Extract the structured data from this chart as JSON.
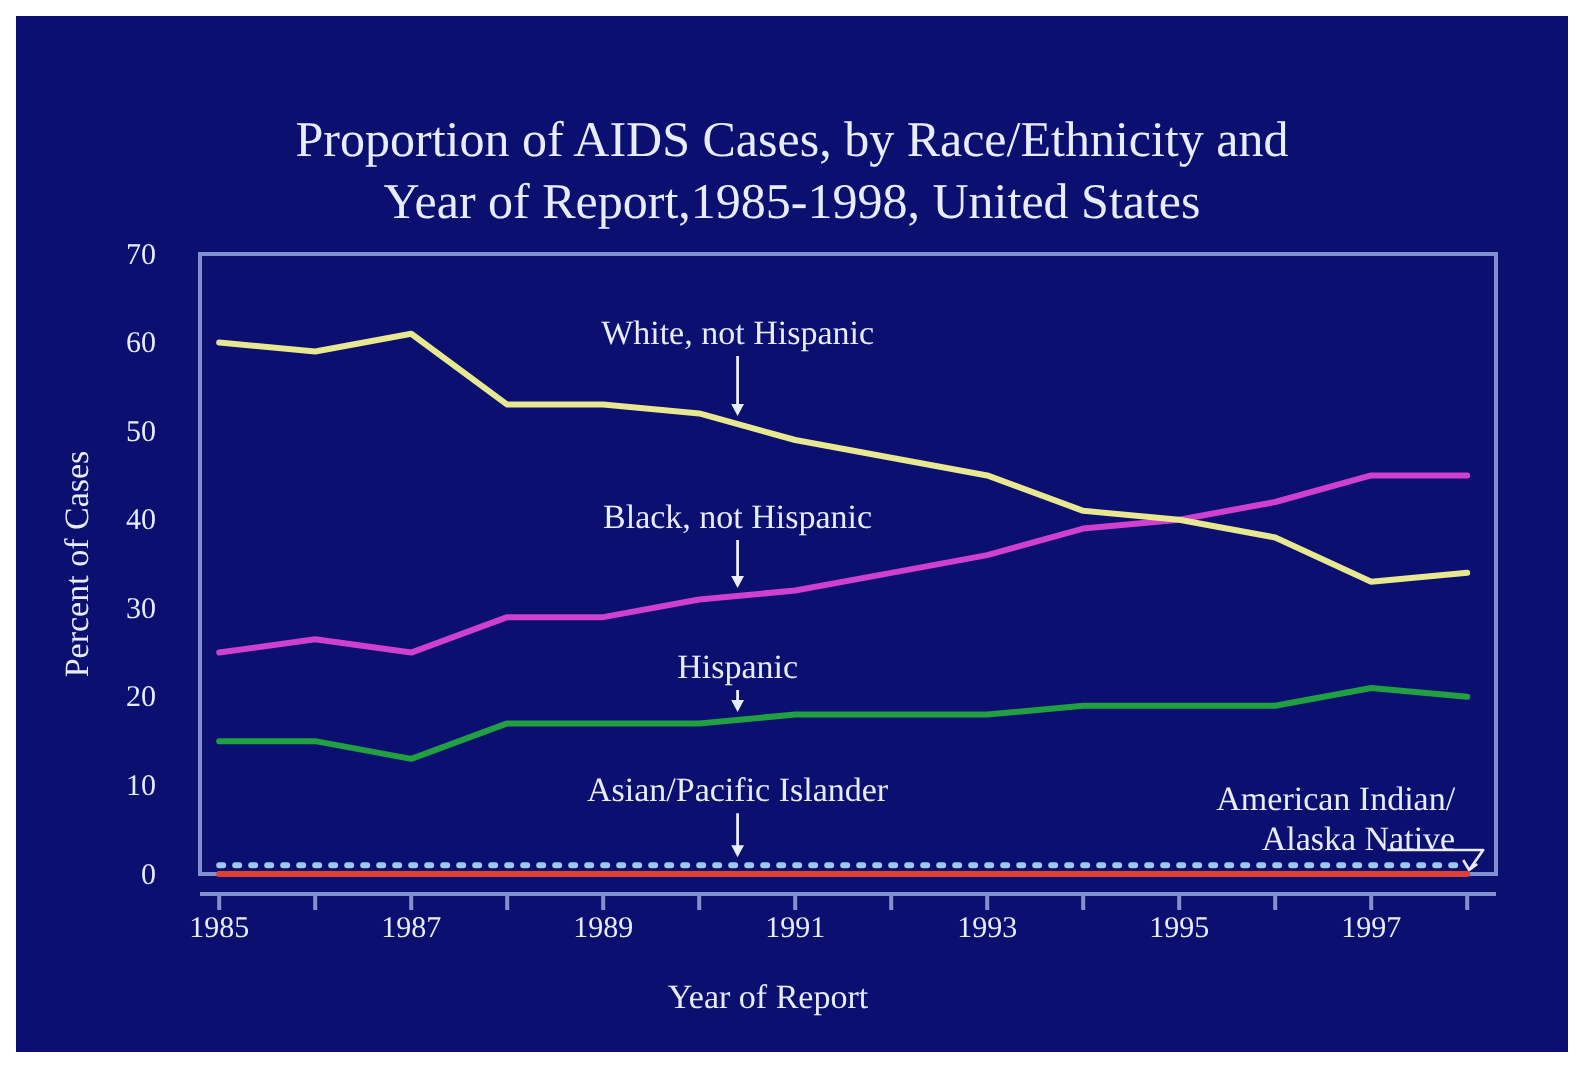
{
  "chart_data": {
    "type": "line",
    "title": "Proportion of AIDS Cases, by Race/Ethnicity and\nYear of Report,1985-1998, United States",
    "xlabel": "Year of Report",
    "ylabel": "Percent of Cases",
    "x": [
      1985,
      1986,
      1987,
      1988,
      1989,
      1990,
      1991,
      1992,
      1993,
      1994,
      1995,
      1996,
      1997,
      1998
    ],
    "xlim": [
      1984.8,
      1998.3
    ],
    "xticks": [
      1985,
      {
        "value": 1986,
        "label": null
      },
      1987,
      {
        "value": 1988,
        "label": null
      },
      1989,
      {
        "value": 1990,
        "label": null
      },
      1991,
      {
        "value": 1992,
        "label": null
      },
      1993,
      {
        "value": 1994,
        "label": null
      },
      1995,
      {
        "value": 1996,
        "label": null
      },
      1997,
      {
        "value": 1998,
        "label": null
      }
    ],
    "ylim": [
      0,
      70
    ],
    "yticks": [
      0,
      10,
      20,
      30,
      40,
      50,
      60,
      70
    ],
    "grid": false,
    "legend": false,
    "marker": "none",
    "series": [
      {
        "name": "White, not Hispanic",
        "color": "#e8e890",
        "values": [
          60,
          59,
          61,
          53,
          53,
          52,
          49,
          47,
          45,
          41,
          40,
          38,
          33,
          34
        ]
      },
      {
        "name": "Black, not Hispanic",
        "color": "#d040d0",
        "values": [
          25,
          26.5,
          25,
          29,
          29,
          31,
          32,
          34,
          36,
          39,
          40,
          42,
          45,
          45
        ]
      },
      {
        "name": "Hispanic",
        "color": "#20a040",
        "values": [
          15,
          15,
          13,
          17,
          17,
          17,
          18,
          18,
          18,
          19,
          19,
          19,
          21,
          20
        ]
      },
      {
        "name": "Asian/Pacific Islander",
        "color": "#a0c8f0",
        "line_style": "dotted",
        "values": [
          1,
          1,
          1,
          1,
          1,
          1,
          1,
          1,
          1,
          1,
          1,
          1,
          1,
          1
        ]
      },
      {
        "name": "American Indian/\nAlaska Native",
        "color": "#e04030",
        "line_style": "solid",
        "values": [
          0,
          0,
          0,
          0,
          0,
          0,
          0,
          0,
          0,
          0,
          0,
          0,
          0,
          0
        ]
      }
    ]
  }
}
